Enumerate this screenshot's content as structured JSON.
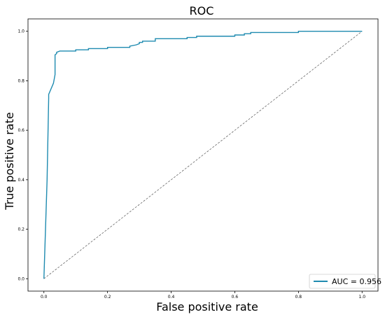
{
  "chart_data": {
    "type": "line",
    "title": "ROC",
    "xlabel": "False positive rate",
    "ylabel": "True positive rate",
    "xlim": [
      -0.05,
      1.05
    ],
    "ylim": [
      -0.05,
      1.05
    ],
    "xticks": [
      "0.0",
      "0.2",
      "0.4",
      "0.6",
      "0.8",
      "1.0"
    ],
    "yticks": [
      "0.0",
      "0.2",
      "0.4",
      "0.6",
      "0.8",
      "1.0"
    ],
    "grid": false,
    "legend_position": "bottom-right",
    "series": [
      {
        "name": "AUC = 0.956",
        "color": "#1f8bb0",
        "style": "solid",
        "x": [
          0.0,
          0.01,
          0.015,
          0.015,
          0.03,
          0.035,
          0.035,
          0.04,
          0.04,
          0.05,
          0.1,
          0.1,
          0.14,
          0.14,
          0.2,
          0.2,
          0.27,
          0.27,
          0.29,
          0.3,
          0.3,
          0.31,
          0.31,
          0.35,
          0.35,
          0.42,
          0.45,
          0.45,
          0.48,
          0.48,
          0.6,
          0.6,
          0.63,
          0.63,
          0.65,
          0.65,
          0.8,
          0.8,
          1.0
        ],
        "y": [
          0.0,
          0.4,
          0.73,
          0.745,
          0.79,
          0.825,
          0.905,
          0.91,
          0.915,
          0.92,
          0.92,
          0.925,
          0.925,
          0.93,
          0.93,
          0.935,
          0.935,
          0.94,
          0.945,
          0.95,
          0.955,
          0.955,
          0.96,
          0.96,
          0.97,
          0.97,
          0.97,
          0.975,
          0.975,
          0.98,
          0.98,
          0.985,
          0.985,
          0.99,
          0.99,
          0.995,
          0.995,
          1.0,
          1.0
        ]
      },
      {
        "name": "",
        "color": "#555555",
        "style": "dashed",
        "x": [
          0.0,
          1.0
        ],
        "y": [
          0.0,
          1.0
        ]
      }
    ]
  }
}
